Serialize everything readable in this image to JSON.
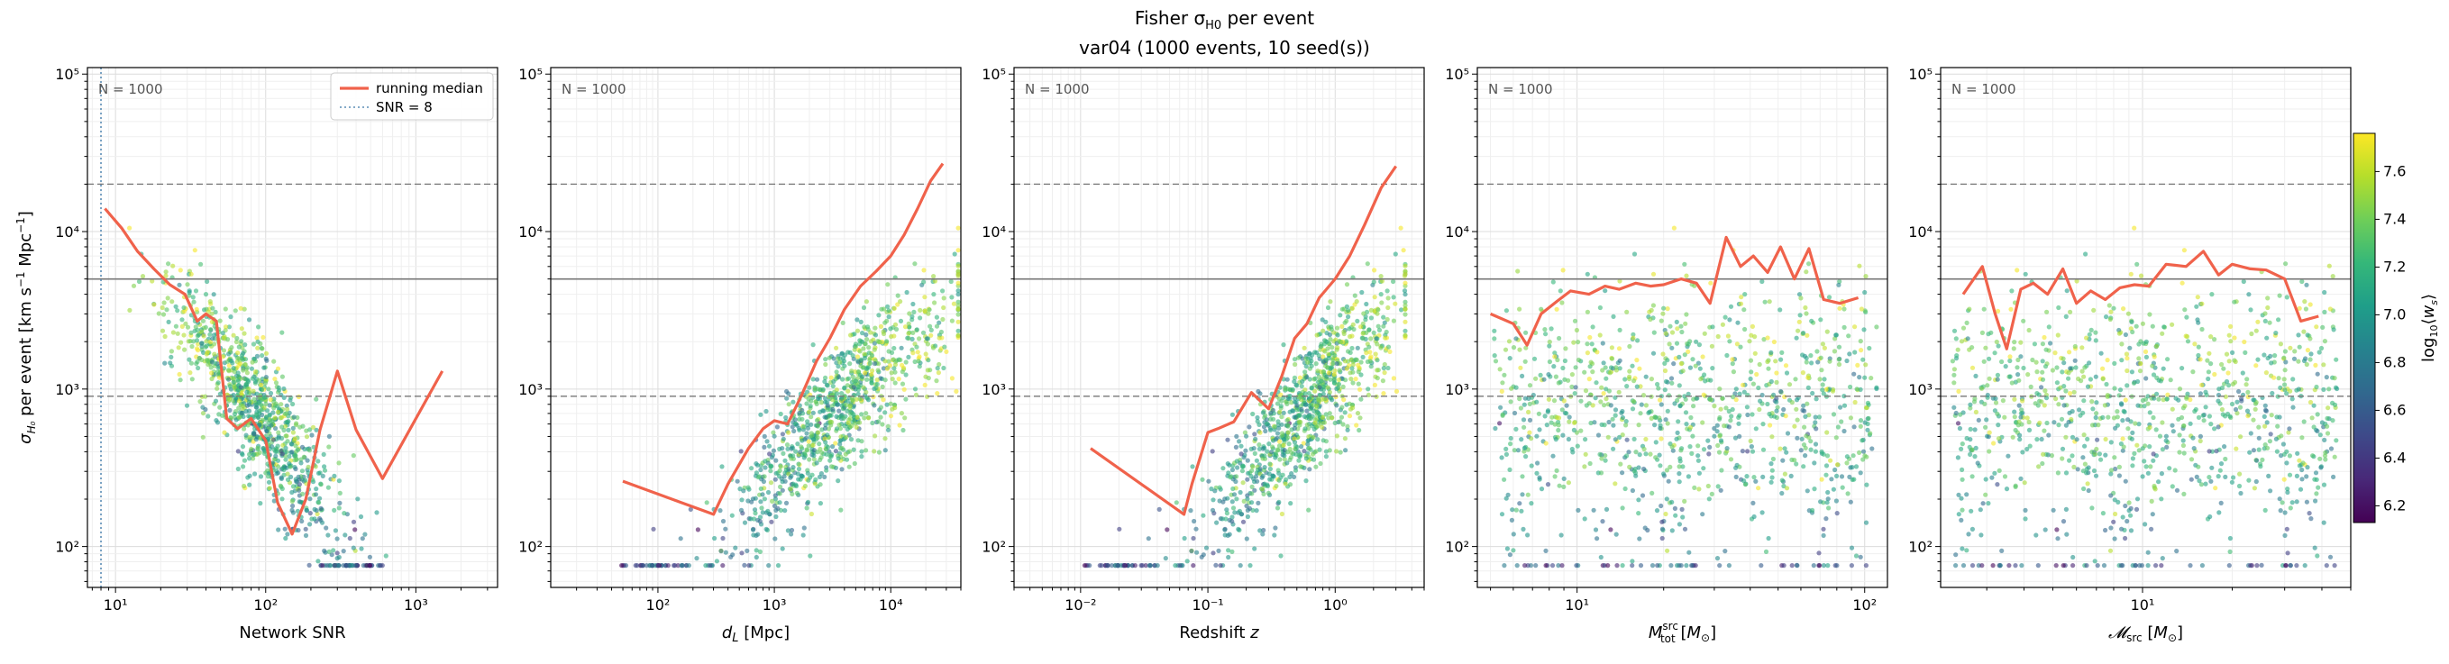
{
  "figure": {
    "title": "Fisher σ",
    "title_sub": "H0",
    "title_tail": " per event",
    "subtitle": "var04  (1000 events, 10 seed(s))"
  },
  "chart_data": [
    {
      "type": "scatter",
      "xlabel": "Network SNR",
      "ylabel": "σ_H0 per event [km s⁻¹ Mpc⁻¹]",
      "xscale": "log",
      "yscale": "log",
      "xlim": [
        6.5,
        3500
      ],
      "ylim": [
        55,
        110000
      ],
      "xticks": [
        {
          "v": 10,
          "label": "10¹"
        },
        {
          "v": 100,
          "label": "10²"
        },
        {
          "v": 1000,
          "label": "10³"
        }
      ],
      "annotation": "N = 1000",
      "hlines": [
        {
          "y": 20000,
          "style": "dashed"
        },
        {
          "y": 5000,
          "style": "solid"
        },
        {
          "y": 900,
          "style": "dashed"
        }
      ],
      "vline": {
        "x": 8,
        "label": "SNR = 8"
      },
      "legend": {
        "position": "top-right",
        "entries": [
          "running median",
          "SNR = 8"
        ]
      },
      "median": {
        "name": "running median",
        "x": [
          8.5,
          11,
          14,
          18,
          23,
          29,
          35,
          40,
          47,
          55,
          65,
          80,
          100,
          120,
          150,
          185,
          230,
          300,
          400,
          600,
          1500
        ],
        "y": [
          14000,
          10500,
          7500,
          5800,
          4600,
          4000,
          2700,
          3000,
          2700,
          650,
          560,
          650,
          470,
          190,
          120,
          200,
          550,
          1300,
          550,
          270,
          1300
        ]
      }
    },
    {
      "type": "scatter",
      "xlabel": "d_L [Mpc]",
      "xscale": "log",
      "yscale": "log",
      "xlim": [
        12,
        40000
      ],
      "ylim": [
        55,
        110000
      ],
      "xticks": [
        {
          "v": 100,
          "label": "10²"
        },
        {
          "v": 1000,
          "label": "10³"
        },
        {
          "v": 10000,
          "label": "10⁴"
        }
      ],
      "annotation": "N = 1000",
      "hlines": [
        {
          "y": 20000,
          "style": "dashed"
        },
        {
          "y": 5000,
          "style": "solid"
        },
        {
          "y": 900,
          "style": "dashed"
        }
      ],
      "median": {
        "name": "running median",
        "x": [
          50,
          300,
          400,
          600,
          800,
          1000,
          1300,
          1700,
          2300,
          3000,
          4000,
          5500,
          7500,
          10000,
          13000,
          17000,
          22000,
          28000
        ],
        "y": [
          260,
          160,
          250,
          420,
          560,
          630,
          600,
          900,
          1500,
          2100,
          3200,
          4500,
          5600,
          7000,
          9500,
          14000,
          21000,
          27000
        ]
      }
    },
    {
      "type": "scatter",
      "xlabel": "Redshift z",
      "xscale": "log",
      "yscale": "log",
      "xlim": [
        0.003,
        5
      ],
      "ylim": [
        55,
        110000
      ],
      "xticks": [
        {
          "v": 0.01,
          "label": "10⁻²"
        },
        {
          "v": 0.1,
          "label": "10⁻¹"
        },
        {
          "v": 1,
          "label": "10⁰"
        }
      ],
      "annotation": "N = 1000",
      "hlines": [
        {
          "y": 20000,
          "style": "dashed"
        },
        {
          "y": 5000,
          "style": "solid"
        },
        {
          "y": 900,
          "style": "dashed"
        }
      ],
      "median": {
        "name": "running median",
        "x": [
          0.012,
          0.065,
          0.075,
          0.1,
          0.12,
          0.16,
          0.22,
          0.3,
          0.38,
          0.48,
          0.6,
          0.75,
          1.0,
          1.3,
          1.7,
          2.3,
          3.0
        ],
        "y": [
          420,
          160,
          250,
          530,
          560,
          620,
          950,
          750,
          1200,
          2100,
          2600,
          3800,
          5000,
          7000,
          11000,
          19000,
          26000
        ]
      }
    },
    {
      "type": "scatter",
      "xlabel": "M_tot^src [M⊙]",
      "xscale": "log",
      "yscale": "log",
      "xlim": [
        4.5,
        120
      ],
      "ylim": [
        55,
        110000
      ],
      "xticks": [
        {
          "v": 10,
          "label": "10¹"
        },
        {
          "v": 100,
          "label": "10²"
        }
      ],
      "annotation": "N = 1000",
      "hlines": [
        {
          "y": 20000,
          "style": "dashed"
        },
        {
          "y": 5000,
          "style": "solid"
        },
        {
          "y": 900,
          "style": "dashed"
        }
      ],
      "median": {
        "name": "running median",
        "x": [
          5,
          6,
          6.7,
          7.5,
          8.5,
          9.5,
          11,
          12.5,
          14,
          16,
          18,
          20,
          23,
          26,
          29,
          33,
          37,
          41,
          46,
          51,
          57,
          64,
          72,
          82,
          95
        ],
        "y": [
          3000,
          2600,
          1900,
          3000,
          3600,
          4200,
          4000,
          4500,
          4300,
          4700,
          4500,
          4600,
          5000,
          4700,
          3500,
          9200,
          6000,
          7000,
          5500,
          8000,
          5000,
          7800,
          3700,
          3500,
          3800
        ]
      }
    },
    {
      "type": "scatter",
      "xlabel": "𝓜_src [M⊙]",
      "xscale": "log",
      "yscale": "log",
      "xlim": [
        2.1,
        50
      ],
      "ylim": [
        55,
        110000
      ],
      "xticks": [
        {
          "v": 10,
          "label": "10¹"
        }
      ],
      "annotation": "N = 1000",
      "hlines": [
        {
          "y": 20000,
          "style": "dashed"
        },
        {
          "y": 5000,
          "style": "solid"
        },
        {
          "y": 900,
          "style": "dashed"
        }
      ],
      "median": {
        "name": "running median",
        "x": [
          2.5,
          2.9,
          3.2,
          3.5,
          3.9,
          4.3,
          4.8,
          5.4,
          6,
          6.7,
          7.5,
          8.4,
          9.4,
          10.5,
          12,
          14,
          16,
          18,
          20,
          23,
          26,
          30,
          34,
          39
        ],
        "y": [
          4000,
          6000,
          3000,
          1800,
          4300,
          4700,
          4000,
          5800,
          3500,
          4200,
          3700,
          4400,
          4600,
          4500,
          6200,
          6000,
          7500,
          5300,
          6200,
          5800,
          5700,
          5000,
          2700,
          2900
        ]
      }
    }
  ],
  "colorbar": {
    "label": "log₁₀⟨w_s⟩",
    "range": [
      6.13,
      7.76
    ],
    "ticks": [
      "6.2",
      "6.4",
      "6.6",
      "6.8",
      "7.0",
      "7.2",
      "7.4",
      "7.6"
    ],
    "colors": [
      "#440154",
      "#482878",
      "#3e4989",
      "#31688e",
      "#26828e",
      "#1f9e89",
      "#35b779",
      "#6ece58",
      "#b5de2b",
      "#fde725"
    ]
  },
  "yticks": [
    {
      "v": 100,
      "label": "10²"
    },
    {
      "v": 1000,
      "label": "10³"
    },
    {
      "v": 10000,
      "label": "10⁴"
    },
    {
      "v": 100000,
      "label": "10⁵"
    }
  ],
  "colors": {
    "median": "#f0624b",
    "hline": "#777777",
    "vline": "#5b8db5"
  }
}
